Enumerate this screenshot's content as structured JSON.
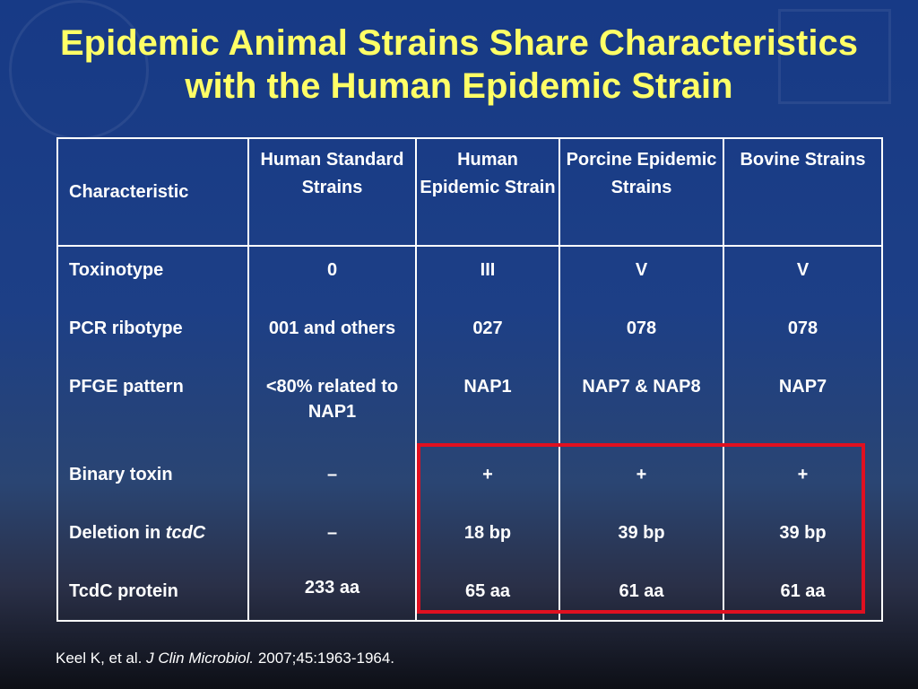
{
  "title": {
    "line1": "Epidemic Animal Strains Share Characteristics",
    "line2": "with the Human Epidemic Strain"
  },
  "table": {
    "headers": [
      "Characteristic",
      "Human Standard Strains",
      "Human Epidemic Strain",
      "Porcine Epidemic Strains",
      "Bovine Strains"
    ],
    "rows": [
      {
        "label": "Toxinotype",
        "values": [
          "0",
          "III",
          "V",
          "V"
        ]
      },
      {
        "label": "PCR ribotype",
        "values": [
          "001 and others",
          "027",
          "078",
          "078"
        ]
      },
      {
        "label": "PFGE pattern",
        "values": [
          "<80% related to NAP1",
          "NAP1",
          "NAP7 & NAP8",
          "NAP7"
        ]
      },
      {
        "label": "Binary toxin",
        "values": [
          "–",
          "+",
          "+",
          "+"
        ]
      },
      {
        "label_prefix": "Deletion in ",
        "label_italic": "tcdC",
        "values": [
          "–",
          "18 bp",
          "39 bp",
          "39 bp"
        ]
      },
      {
        "label": "TcdC protein",
        "values": [
          "233 aa",
          "65 aa",
          "61 aa",
          "61 aa"
        ]
      }
    ]
  },
  "citation": {
    "authors": "Keel K, et al. ",
    "journal": "J Clin Microbiol.",
    "details": " 2007;45:1963-1964."
  },
  "colors": {
    "title": "#ffff66",
    "highlight_box": "#e01020",
    "background_top": "#173a86"
  }
}
